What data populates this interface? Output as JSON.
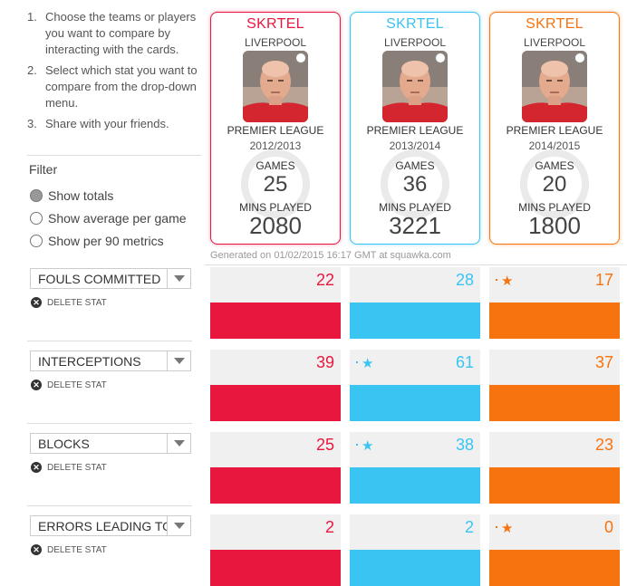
{
  "instructions": [
    {
      "num": "1.",
      "text": "Choose the teams or players you want to compare by interacting with the cards."
    },
    {
      "num": "2.",
      "text": "Select which stat you want to compare from the drop-down menu."
    },
    {
      "num": "3.",
      "text": "Share with your friends."
    }
  ],
  "filter": {
    "title": "Filter",
    "options": [
      {
        "label": "Show totals",
        "selected": true
      },
      {
        "label": "Show average per game",
        "selected": false
      },
      {
        "label": "Show per 90 metrics",
        "selected": false
      }
    ]
  },
  "cards": [
    {
      "name": "SKRTEL",
      "club": "LIVERPOOL",
      "competition": "PREMIER LEAGUE",
      "season": "2012/2013",
      "games_label": "GAMES",
      "games": "25",
      "mins_label": "MINS PLAYED",
      "mins": "2080",
      "color": "#e8173e",
      "glow": "#f6a3b5"
    },
    {
      "name": "SKRTEL",
      "club": "LIVERPOOL",
      "competition": "PREMIER LEAGUE",
      "season": "2013/2014",
      "games_label": "GAMES",
      "games": "36",
      "mins_label": "MINS PLAYED",
      "mins": "3221",
      "color": "#3ac4f2",
      "glow": "#a8e3f8"
    },
    {
      "name": "SKRTEL",
      "club": "LIVERPOOL",
      "competition": "PREMIER LEAGUE",
      "season": "2014/2015",
      "games_label": "GAMES",
      "games": "20",
      "mins_label": "MINS PLAYED",
      "mins": "1800",
      "color": "#f7730f",
      "glow": "#fbc08f"
    }
  ],
  "generated": "Generated on 01/02/2015 16:17 GMT at squawka.com",
  "delete_label": "DELETE STAT",
  "stats": [
    {
      "label": "FOULS COMMITTED",
      "values": [
        "22",
        "28",
        "17"
      ],
      "star": 2
    },
    {
      "label": "INTERCEPTIONS",
      "values": [
        "39",
        "61",
        "37"
      ],
      "star": 1
    },
    {
      "label": "BLOCKS",
      "values": [
        "25",
        "38",
        "23"
      ],
      "star": 1
    },
    {
      "label": "ERRORS LEADING TO",
      "values": [
        "2",
        "2",
        "0"
      ],
      "star": 2
    }
  ],
  "colors": {
    "red": "#e8173e",
    "blue": "#3ac4f2",
    "orange": "#f7730f"
  },
  "icons": {
    "star": "star-icon",
    "delete": "delete-icon",
    "dropdown": "chevron-down-icon",
    "club": "club-badge-icon"
  }
}
